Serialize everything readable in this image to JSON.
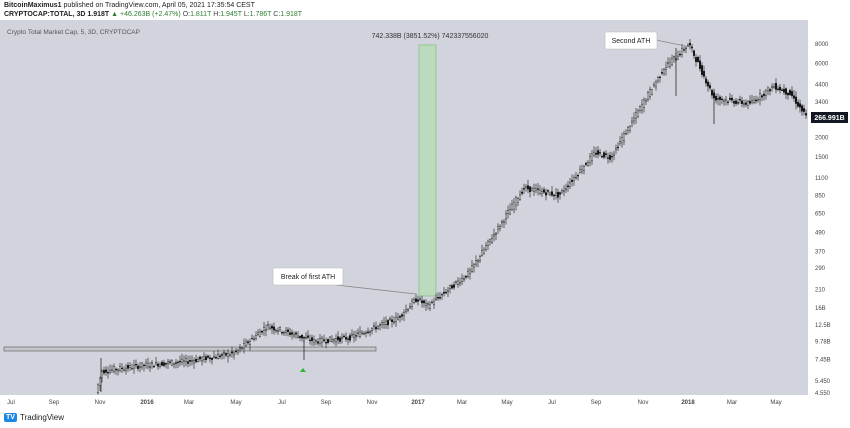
{
  "header": {
    "author": "BitcoinMaximus1",
    "published_text": "published on TradingView.com, April 05, 2021 17:35:54 CEST",
    "symbol": "CRYPTOCAP:TOTAL, 3D",
    "last": "1.918T",
    "change": "+46.263B (+2.47%)",
    "o_label": "O:",
    "o_value": "1.811T",
    "h_label": "H:",
    "h_value": "1.945T",
    "l_label": "L:",
    "l_value": "1.786T",
    "c_label": "C:",
    "c_value": "1.918T"
  },
  "footer": {
    "brand": "TradingView",
    "logo_text": "TV"
  },
  "chart_data": {
    "type": "candlestick",
    "title": "Crypto Total Market Cap, 5, 3D, CRYPTOCAP",
    "scale": "log",
    "x_ticks": [
      "Jul",
      "Sep",
      "Nov",
      "2016",
      "Mar",
      "May",
      "Jul",
      "Sep",
      "Nov",
      "2017",
      "Mar",
      "May",
      "Jul",
      "Sep",
      "Nov",
      "2018",
      "Mar",
      "May"
    ],
    "y_ticks": [
      "4.55B",
      "5.45B",
      "7.45B",
      "9.78B",
      "12.5B",
      "16B",
      "21B",
      "29B",
      "37B",
      "49B",
      "65B",
      "85B",
      "110B",
      "150B",
      "200B",
      "260B",
      "340B",
      "440B",
      "600B",
      "800B"
    ],
    "y_tick_labels": [
      "4.550",
      "5.450",
      "7.45B",
      "9.78B",
      "12.5B",
      "16B",
      "210",
      "290",
      "370",
      "490",
      "650",
      "850",
      "1100",
      "1500",
      "2000",
      "2600",
      "3400",
      "4400",
      "6000",
      "8000"
    ],
    "last_price_label": "266.991B",
    "measure_label": "742.338B (3851.52%) 742337556020",
    "annotations": [
      "Break of first ATH",
      "Second ATH"
    ],
    "support_zone_label": "",
    "series_points": [
      {
        "date": "2015-10",
        "value": 4.6
      },
      {
        "date": "2015-11",
        "value": 6.3
      },
      {
        "date": "2016-01",
        "value": 6.9
      },
      {
        "date": "2016-03",
        "value": 7.3
      },
      {
        "date": "2016-05",
        "value": 8.2
      },
      {
        "date": "2016-06",
        "value": 12.3
      },
      {
        "date": "2016-08",
        "value": 9.8
      },
      {
        "date": "2016-10",
        "value": 10.3
      },
      {
        "date": "2016-12",
        "value": 13.7
      },
      {
        "date": "2017-01",
        "value": 18.5
      },
      {
        "date": "2017-02",
        "value": 16.4
      },
      {
        "date": "2017-04",
        "value": 27
      },
      {
        "date": "2017-06",
        "value": 95
      },
      {
        "date": "2017-07",
        "value": 85
      },
      {
        "date": "2017-09",
        "value": 160
      },
      {
        "date": "2017-10",
        "value": 150
      },
      {
        "date": "2017-12",
        "value": 560
      },
      {
        "date": "2018-01",
        "value": 800
      },
      {
        "date": "2018-02",
        "value": 360
      },
      {
        "date": "2018-03",
        "value": 330
      },
      {
        "date": "2018-04",
        "value": 380
      },
      {
        "date": "2018-05",
        "value": 430
      },
      {
        "date": "2018-06",
        "value": 285
      },
      {
        "date": "2018-07",
        "value": 267
      }
    ]
  }
}
